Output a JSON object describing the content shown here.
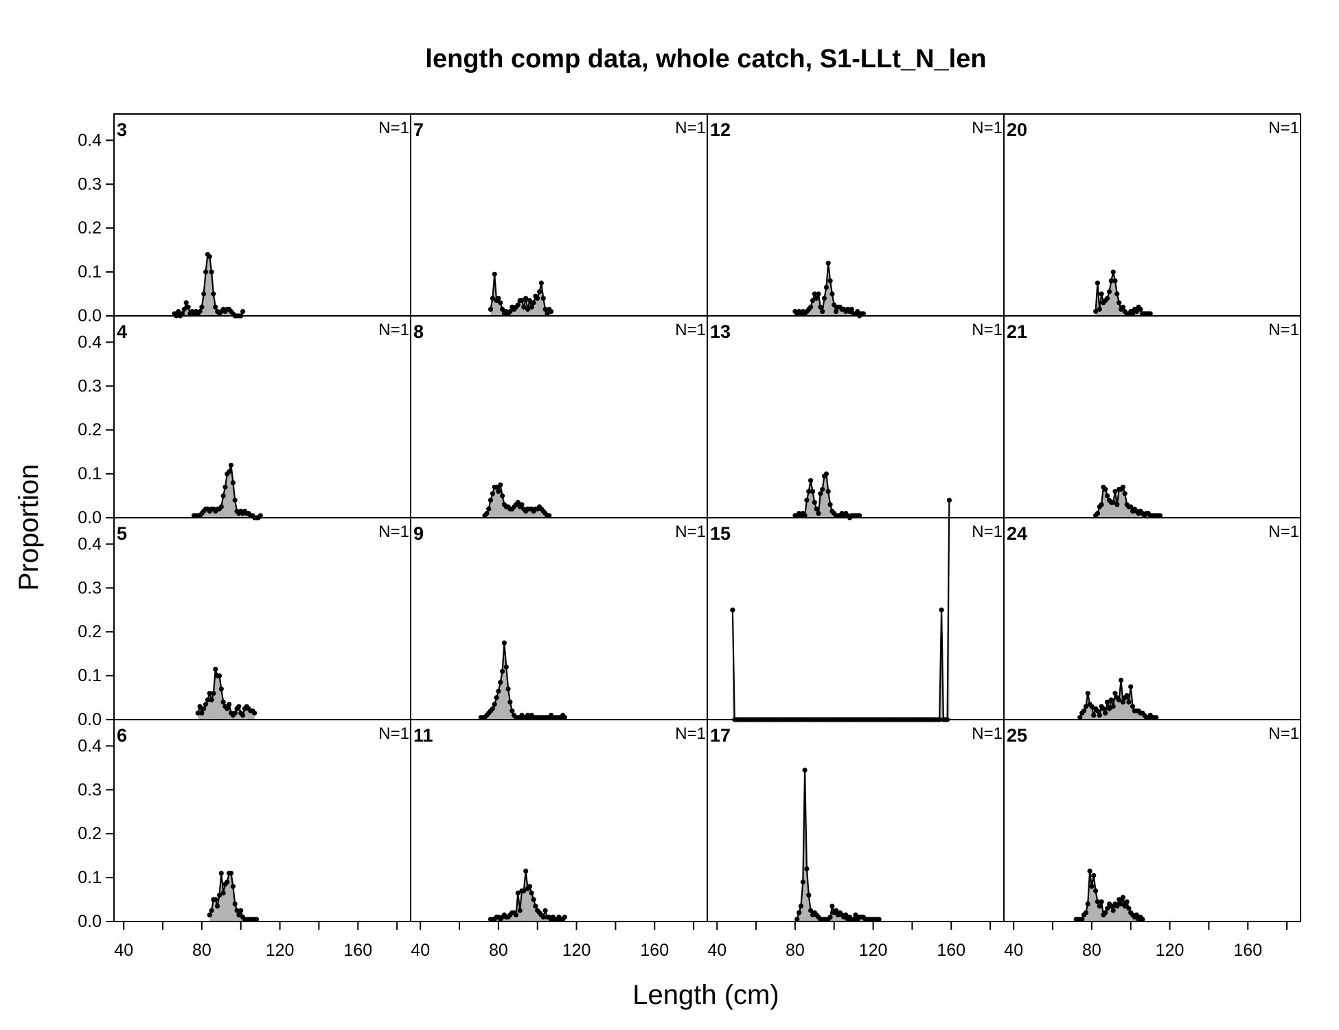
{
  "chart_data": {
    "type": "area",
    "title": "length comp data, whole catch, S1-LLt_N_len",
    "xlabel": "Length (cm)",
    "ylabel": "Proportion",
    "xlim": [
      35,
      187
    ],
    "ylim": [
      0,
      0.46
    ],
    "x_ticks": [
      40,
      80,
      120,
      160
    ],
    "y_ticks": [
      0.0,
      0.1,
      0.2,
      0.3,
      0.4
    ],
    "x_tick_labels": [
      "40",
      "80",
      "120",
      "160"
    ],
    "y_tick_labels": [
      "0.0",
      "0.1",
      "0.2",
      "0.3",
      "0.4"
    ],
    "grid": false,
    "fill_color": "#b3b3b3",
    "line_color": "#000000",
    "panels": [
      {
        "label": "3",
        "n_label": "N=1",
        "x_start": 66,
        "values": [
          0.005,
          0,
          0.01,
          0,
          0.005,
          0.015,
          0.03,
          0.02,
          0.005,
          0.01,
          0.005,
          0.01,
          0.005,
          0.01,
          0.02,
          0.05,
          0.1,
          0.14,
          0.135,
          0.1,
          0.05,
          0.02,
          0.01,
          0.005,
          0.01,
          0.015,
          0.01,
          0.015,
          0.015,
          0.01,
          0.005,
          0,
          0,
          0,
          0,
          0.01
        ]
      },
      {
        "label": "7",
        "n_label": "N=1",
        "x_start": 76,
        "values": [
          0.015,
          0.04,
          0.095,
          0.035,
          0.04,
          0.03,
          0.015,
          0.005,
          0.01,
          0.005,
          0.01,
          0.02,
          0.015,
          0.02,
          0.025,
          0.035,
          0.035,
          0.02,
          0.04,
          0.015,
          0.035,
          0.02,
          0.03,
          0.045,
          0.04,
          0.055,
          0.075,
          0.04,
          0.015,
          0.005,
          0.015,
          0.01
        ]
      },
      {
        "label": "12",
        "n_label": "N=1",
        "x_start": 80,
        "values": [
          0.01,
          0.005,
          0.01,
          0.005,
          0.01,
          0.005,
          0.01,
          0.015,
          0.02,
          0.035,
          0.05,
          0.04,
          0.05,
          0.02,
          0.01,
          0.04,
          0.065,
          0.12,
          0.08,
          0.05,
          0.025,
          0.01,
          0.02,
          0.02,
          0.015,
          0.015,
          0.01,
          0.015,
          0.01,
          0.015,
          0.005,
          0.005,
          0.01,
          0,
          0.005,
          0.005
        ]
      },
      {
        "label": "20",
        "n_label": "N=1",
        "x_start": 82,
        "values": [
          0.01,
          0.075,
          0.015,
          0.05,
          0.03,
          0.035,
          0.04,
          0.055,
          0.08,
          0.1,
          0.08,
          0.05,
          0.03,
          0.015,
          0.02,
          0.01,
          0.005,
          0.005,
          0.01,
          0.005,
          0.015,
          0.01,
          0.02,
          0.015,
          0.005,
          0.005,
          0.005,
          0.005,
          0.005
        ]
      },
      {
        "label": "4",
        "n_label": "N=1",
        "x_start": 76,
        "values": [
          0.005,
          0.005,
          0.005,
          0.005,
          0.01,
          0.015,
          0.02,
          0.02,
          0.015,
          0.02,
          0.02,
          0.015,
          0.02,
          0.02,
          0.025,
          0.05,
          0.07,
          0.1,
          0.105,
          0.12,
          0.08,
          0.04,
          0.015,
          0.01,
          0.015,
          0.01,
          0.015,
          0.01,
          0.01,
          0.005,
          0.005,
          0,
          0,
          0,
          0.005
        ]
      },
      {
        "label": "8",
        "n_label": "N=1",
        "x_start": 73,
        "values": [
          0.005,
          0.01,
          0.02,
          0.04,
          0.055,
          0.07,
          0.07,
          0.06,
          0.075,
          0.05,
          0.03,
          0.025,
          0.025,
          0.02,
          0.02,
          0.025,
          0.03,
          0.035,
          0.025,
          0.03,
          0.02,
          0.015,
          0.02,
          0.02,
          0.02,
          0.015,
          0.02,
          0.02,
          0.025,
          0.02,
          0.015,
          0.01,
          0.005,
          0.005
        ]
      },
      {
        "label": "13",
        "n_label": "N=1",
        "x_start": 80,
        "values": [
          0.005,
          0.005,
          0.01,
          0.005,
          0.01,
          0.005,
          0.04,
          0.06,
          0.085,
          0.06,
          0.035,
          0.02,
          0.01,
          0.055,
          0.065,
          0.095,
          0.1,
          0.06,
          0.03,
          0.015,
          0.01,
          0.005,
          0.005,
          0.005,
          0.01,
          0.005,
          0.01,
          0.005,
          0,
          0.005,
          0.005,
          0.005,
          0.005,
          0.005
        ]
      },
      {
        "label": "21",
        "n_label": "N=1",
        "x_start": 82,
        "values": [
          0.005,
          0.01,
          0.025,
          0.03,
          0.07,
          0.065,
          0.05,
          0.04,
          0.035,
          0.035,
          0.06,
          0.03,
          0.065,
          0.065,
          0.07,
          0.055,
          0.03,
          0.025,
          0.025,
          0.015,
          0.02,
          0.015,
          0.01,
          0.015,
          0.01,
          0.005,
          0.01,
          0.01,
          0.005,
          0.005,
          0.005,
          0.005,
          0.005,
          0.005
        ]
      },
      {
        "label": "5",
        "n_label": "N=1",
        "x_start": 78,
        "values": [
          0.015,
          0.03,
          0.015,
          0.025,
          0.035,
          0.045,
          0.06,
          0.045,
          0.06,
          0.115,
          0.1,
          0.1,
          0.07,
          0.04,
          0.03,
          0.025,
          0.035,
          0.015,
          0.01,
          0.015,
          0.025,
          0.03,
          0.015,
          0.01,
          0.025,
          0.03,
          0.025,
          0.02,
          0.02,
          0.015
        ]
      },
      {
        "label": "9",
        "n_label": "N=1",
        "x_start": 71,
        "values": [
          0.005,
          0.005,
          0.005,
          0.01,
          0.015,
          0.02,
          0.025,
          0.035,
          0.05,
          0.065,
          0.085,
          0.11,
          0.175,
          0.12,
          0.07,
          0.04,
          0.02,
          0.01,
          0.005,
          0.005,
          0.005,
          0.01,
          0.005,
          0.005,
          0.01,
          0.005,
          0.01,
          0.005,
          0.005,
          0.005,
          0.005,
          0.005,
          0.005,
          0.005,
          0.005,
          0.005,
          0.01,
          0.005,
          0.005,
          0.005,
          0.005,
          0.005,
          0.01,
          0.005
        ]
      },
      {
        "label": "15",
        "n_label": "N=1",
        "x_start": 48,
        "values": [
          0.25,
          0,
          0,
          0,
          0,
          0,
          0,
          0,
          0,
          0,
          0,
          0,
          0,
          0,
          0,
          0,
          0,
          0,
          0,
          0,
          0,
          0,
          0,
          0,
          0,
          0,
          0,
          0,
          0,
          0,
          0,
          0,
          0,
          0,
          0,
          0,
          0,
          0,
          0,
          0,
          0,
          0,
          0,
          0,
          0,
          0,
          0,
          0,
          0,
          0,
          0,
          0,
          0,
          0,
          0,
          0,
          0,
          0,
          0,
          0,
          0,
          0,
          0,
          0,
          0,
          0,
          0,
          0,
          0,
          0,
          0,
          0,
          0,
          0,
          0,
          0,
          0,
          0,
          0,
          0,
          0,
          0,
          0,
          0,
          0,
          0,
          0,
          0,
          0,
          0,
          0,
          0,
          0,
          0,
          0,
          0,
          0,
          0,
          0,
          0,
          0,
          0,
          0,
          0,
          0,
          0,
          0,
          0.25,
          0,
          0,
          0,
          0.5
        ]
      },
      {
        "label": "24",
        "n_label": "N=1",
        "x_start": 74,
        "values": [
          0.005,
          0.015,
          0.02,
          0.03,
          0.06,
          0.035,
          0.03,
          0.01,
          0.025,
          0.02,
          0.01,
          0.03,
          0.025,
          0.015,
          0.04,
          0.025,
          0.045,
          0.03,
          0.06,
          0.05,
          0.045,
          0.09,
          0.04,
          0.05,
          0.055,
          0.04,
          0.075,
          0.03,
          0.02,
          0.02,
          0.02,
          0.015,
          0.015,
          0.01,
          0.005,
          0.005,
          0.01,
          0.005,
          0.005,
          0.005
        ]
      },
      {
        "label": "6",
        "n_label": "N=1",
        "x_start": 84,
        "values": [
          0.015,
          0.025,
          0.05,
          0.05,
          0.035,
          0.06,
          0.11,
          0.065,
          0.085,
          0.09,
          0.11,
          0.11,
          0.08,
          0.04,
          0.025,
          0.015,
          0.025,
          0.01,
          0.005,
          0.005,
          0.005,
          0.005,
          0.005,
          0.005,
          0.005
        ]
      },
      {
        "label": "11",
        "n_label": "N=1",
        "x_start": 76,
        "values": [
          0.005,
          0.005,
          0.005,
          0.01,
          0.01,
          0.005,
          0.01,
          0.015,
          0.01,
          0.01,
          0.015,
          0.02,
          0.02,
          0.015,
          0.065,
          0.025,
          0.07,
          0.07,
          0.115,
          0.075,
          0.08,
          0.065,
          0.05,
          0.035,
          0.025,
          0.02,
          0.015,
          0.01,
          0.025,
          0.01,
          0.01,
          0.005,
          0.01,
          0.005,
          0.005,
          0.01,
          0.005,
          0.005,
          0.01
        ]
      },
      {
        "label": "17",
        "n_label": "N=1",
        "x_start": 81,
        "values": [
          0.005,
          0.02,
          0.035,
          0.09,
          0.345,
          0.12,
          0.06,
          0.025,
          0.015,
          0.02,
          0.015,
          0.01,
          0.005,
          0.005,
          0.005,
          0.005,
          0.005,
          0.01,
          0.035,
          0.02,
          0.025,
          0.015,
          0.02,
          0.015,
          0.01,
          0.015,
          0.005,
          0.01,
          0.005,
          0.005,
          0.015,
          0.005,
          0.01,
          0.01,
          0.01,
          0.005,
          0.005,
          0.005,
          0.005,
          0.005,
          0.005,
          0.005,
          0.005
        ]
      },
      {
        "label": "25",
        "n_label": "N=1",
        "x_start": 72,
        "values": [
          0.005,
          0.005,
          0.005,
          0.005,
          0.015,
          0.02,
          0.04,
          0.115,
          0.08,
          0.105,
          0.07,
          0.045,
          0.035,
          0.045,
          0.015,
          0.02,
          0.03,
          0.04,
          0.035,
          0.025,
          0.04,
          0.035,
          0.05,
          0.04,
          0.055,
          0.035,
          0.045,
          0.03,
          0.02,
          0.015,
          0.01,
          0.015,
          0.005,
          0.01,
          0.005
        ]
      }
    ]
  }
}
